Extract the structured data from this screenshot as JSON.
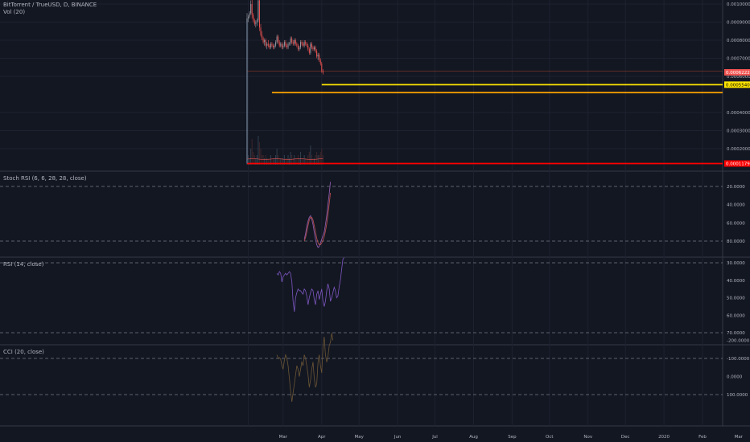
{
  "colors": {
    "background": "#131722",
    "grid": "#1e2230",
    "up": "#9598a1",
    "down": "#ef5350",
    "stoch_k": "#6d4c8f",
    "stoch_d": "#b04e4e",
    "rsi_line": "#7e57c2",
    "cci_line": "#5c4a30",
    "band_purple": "#2a1a4a",
    "band_cci": "#1e1f18",
    "hline_red": "#ff0000",
    "hline_yellow": "#ffe600",
    "hline_orange": "#ffa500",
    "hline_brown": "#8b3a2a"
  },
  "main": {
    "title": "BitTorrent / TrueUSD, D, BINANCE",
    "vol_label": "Vol (20)",
    "price_ticks": [
      "0.0010000",
      "0.0009000",
      "0.0008000",
      "0.0007000",
      "0.0006000",
      "0.0004000",
      "0.0003000",
      "0.0002000"
    ],
    "price_tick_values": [
      0.001,
      0.0009,
      0.0008,
      0.0007,
      0.0006,
      0.0004,
      0.0003,
      0.0002
    ],
    "last_price": "0.0006222",
    "last_price_value": 0.0006222,
    "hlines": [
      {
        "label": "0.0005540",
        "value": 0.000554,
        "color": "#ffe600",
        "start_date": "2019-04-01"
      },
      {
        "label": "",
        "value": 0.00051,
        "color": "#ffa500",
        "start_date": "2019-02-20"
      },
      {
        "label": "0.0001179",
        "value": 0.0001179,
        "color": "#ff0000",
        "start_date": "2019-01-31"
      },
      {
        "label": "",
        "value": 0.000628,
        "color": "#8b3a2a",
        "start_date": "2019-01-31"
      }
    ]
  },
  "x_axis": {
    "labels": [
      "Mar",
      "Apr",
      "May",
      "Jun",
      "Jul",
      "Aug",
      "Sep",
      "Oct",
      "Nov",
      "Dec",
      "2020",
      "Feb",
      "Mar"
    ]
  },
  "stoch": {
    "title": "Stoch RSI (6, 6, 28, 28, close)",
    "ticks": [
      "80.0000",
      "60.0000",
      "40.0000",
      "20.0000"
    ],
    "tick_values": [
      80,
      60,
      40,
      20
    ],
    "band": [
      20,
      80
    ]
  },
  "rsi": {
    "title": "RSI (14, close)",
    "ticks": [
      "70.0000",
      "60.0000",
      "50.0000",
      "40.0000",
      "30.0000"
    ],
    "tick_values": [
      70,
      60,
      50,
      40,
      30
    ],
    "band": [
      30,
      70
    ]
  },
  "cci": {
    "title": "CCI (20, close)",
    "ticks": [
      "100.0000",
      "0.0000",
      "-100.0000",
      "-200.0000"
    ],
    "tick_values": [
      100,
      0,
      -100,
      -200
    ],
    "band": [
      -100,
      100
    ]
  },
  "chart_data": [
    {
      "type": "candlestick",
      "title": "BitTorrent / TrueUSD, D, BINANCE",
      "x_start": "2019-01-31",
      "x_end": "2019-04-26",
      "ylim": [
        0.00011,
        0.00106
      ],
      "ohlc": [
        [
          0.0009,
          0.00095,
          0.00012,
          0.00092
        ],
        [
          0.00092,
          0.00094,
          0.0009,
          0.00093
        ],
        [
          0.00093,
          0.00096,
          0.00092,
          0.00095
        ],
        [
          0.00095,
          0.00102,
          0.00094,
          0.001
        ],
        [
          0.001,
          0.00103,
          0.00092,
          0.00094
        ],
        [
          0.00094,
          0.00095,
          0.0009,
          0.00091
        ],
        [
          0.00091,
          0.00092,
          0.00088,
          0.00089
        ],
        [
          0.00089,
          0.00091,
          0.00087,
          0.0009
        ],
        [
          0.0009,
          0.00092,
          0.00088,
          0.00091
        ],
        [
          0.00091,
          0.00104,
          0.0009,
          0.00102
        ],
        [
          0.00102,
          0.00104,
          0.00085,
          0.00087
        ],
        [
          0.00087,
          0.00089,
          0.00082,
          0.00083
        ],
        [
          0.00083,
          0.00085,
          0.0008,
          0.00081
        ],
        [
          0.00081,
          0.00082,
          0.00078,
          0.00079
        ],
        [
          0.00079,
          0.00081,
          0.00077,
          0.0008
        ],
        [
          0.0008,
          0.00081,
          0.00076,
          0.00077
        ],
        [
          0.00077,
          0.00079,
          0.00075,
          0.00078
        ],
        [
          0.00078,
          0.0008,
          0.00076,
          0.00077
        ],
        [
          0.00077,
          0.00078,
          0.00075,
          0.00076
        ],
        [
          0.00076,
          0.00079,
          0.00075,
          0.00078
        ],
        [
          0.00078,
          0.00079,
          0.00076,
          0.00077
        ],
        [
          0.00077,
          0.00078,
          0.00075,
          0.00076
        ],
        [
          0.00076,
          0.00078,
          0.00075,
          0.00077
        ],
        [
          0.00077,
          0.0008,
          0.00076,
          0.00079
        ],
        [
          0.00079,
          0.00083,
          0.00078,
          0.00082
        ],
        [
          0.00082,
          0.00083,
          0.00078,
          0.00079
        ],
        [
          0.00079,
          0.0008,
          0.00076,
          0.00077
        ],
        [
          0.00077,
          0.00079,
          0.00076,
          0.00078
        ],
        [
          0.00078,
          0.00079,
          0.00075,
          0.00076
        ],
        [
          0.00076,
          0.00078,
          0.00075,
          0.00077
        ],
        [
          0.00077,
          0.0008,
          0.00076,
          0.00079
        ],
        [
          0.00079,
          0.0008,
          0.00076,
          0.00077
        ],
        [
          0.00077,
          0.00078,
          0.00075,
          0.00076
        ],
        [
          0.00076,
          0.00079,
          0.00075,
          0.00078
        ],
        [
          0.00078,
          0.00079,
          0.00077,
          0.00078
        ],
        [
          0.00078,
          0.00082,
          0.00077,
          0.00081
        ],
        [
          0.00081,
          0.00082,
          0.00078,
          0.00079
        ],
        [
          0.00079,
          0.0008,
          0.00077,
          0.00078
        ],
        [
          0.00078,
          0.00081,
          0.00077,
          0.0008
        ],
        [
          0.0008,
          0.00081,
          0.00077,
          0.00078
        ],
        [
          0.00078,
          0.00079,
          0.00076,
          0.00077
        ],
        [
          0.00077,
          0.00078,
          0.00074,
          0.00075
        ],
        [
          0.00075,
          0.00077,
          0.00074,
          0.00076
        ],
        [
          0.00076,
          0.0008,
          0.00075,
          0.00079
        ],
        [
          0.00079,
          0.0008,
          0.00077,
          0.00078
        ],
        [
          0.00078,
          0.00079,
          0.00076,
          0.00077
        ],
        [
          0.00077,
          0.0008,
          0.00076,
          0.00079
        ],
        [
          0.00079,
          0.0008,
          0.00077,
          0.00078
        ],
        [
          0.00078,
          0.00079,
          0.00076,
          0.00077
        ],
        [
          0.00077,
          0.00078,
          0.00074,
          0.00075
        ],
        [
          0.00075,
          0.00076,
          0.00072,
          0.00073
        ],
        [
          0.00073,
          0.00079,
          0.00072,
          0.00078
        ],
        [
          0.00078,
          0.00079,
          0.00075,
          0.00076
        ],
        [
          0.00076,
          0.00077,
          0.00074,
          0.00075
        ],
        [
          0.00075,
          0.00077,
          0.00074,
          0.00076
        ],
        [
          0.00076,
          0.00077,
          0.00073,
          0.00074
        ],
        [
          0.00074,
          0.00075,
          0.0007,
          0.00071
        ],
        [
          0.00071,
          0.00073,
          0.00069,
          0.00072
        ],
        [
          0.00072,
          0.00073,
          0.00068,
          0.00069
        ],
        [
          0.00069,
          0.0007,
          0.00066,
          0.00067
        ],
        [
          0.00067,
          0.00068,
          0.00062,
          0.00063
        ],
        [
          0.00063,
          0.00064,
          0.00061,
          0.00062
        ]
      ],
      "volume": [
        0.9,
        0.3,
        0.2,
        0.5,
        0.8,
        0.4,
        0.3,
        0.2,
        0.3,
        0.9,
        0.7,
        0.5,
        0.3,
        0.3,
        0.2,
        0.3,
        0.2,
        0.2,
        0.2,
        0.3,
        0.2,
        0.2,
        0.2,
        0.3,
        0.5,
        0.3,
        0.2,
        0.2,
        0.2,
        0.2,
        0.3,
        0.2,
        0.2,
        0.3,
        0.2,
        0.4,
        0.3,
        0.2,
        0.3,
        0.2,
        0.2,
        0.3,
        0.2,
        0.4,
        0.2,
        0.2,
        0.3,
        0.2,
        0.2,
        0.3,
        0.4,
        0.6,
        0.3,
        0.2,
        0.2,
        0.3,
        0.4,
        0.3,
        0.3,
        0.4,
        0.5,
        0.3
      ]
    },
    {
      "type": "line",
      "title": "Stoch RSI (6, 6, 28, 28, close)",
      "ylim": [
        10,
        88
      ],
      "series": [
        {
          "x_start": "2019-03-18",
          "values": [
            78,
            72,
            64,
            58,
            54,
            52,
            56,
            62,
            70,
            78,
            84,
            87,
            86,
            82,
            78,
            74,
            70,
            62,
            52,
            40,
            28,
            15
          ]
        },
        {
          "x_start": "2019-03-18",
          "values": [
            80,
            76,
            70,
            63,
            57,
            54,
            54,
            57,
            63,
            70,
            77,
            82,
            84,
            84,
            82,
            79,
            75,
            69,
            61,
            51,
            39,
            27
          ]
        }
      ]
    },
    {
      "type": "line",
      "title": "RSI (14, close)",
      "ylim": [
        26,
        72
      ],
      "series": [
        {
          "x_start": "2019-02-24",
          "values": [
            36,
            37,
            35,
            36,
            41,
            38,
            37,
            36,
            37,
            36,
            35,
            36,
            41,
            52,
            58,
            50,
            47,
            45,
            46,
            46,
            47,
            48,
            45,
            46,
            49,
            54,
            50,
            47,
            45,
            46,
            51,
            54,
            48,
            46,
            51,
            48,
            45,
            52,
            55,
            52,
            46,
            42,
            45,
            52,
            50,
            47,
            44,
            46,
            50,
            49,
            44,
            40,
            34,
            28,
            27
          ]
        }
      ]
    },
    {
      "type": "line",
      "title": "CCI (20, close)",
      "ylim": [
        -260,
        150
      ],
      "series": [
        {
          "x_start": "2019-02-24",
          "values": [
            -120,
            -100,
            -105,
            -95,
            -60,
            -40,
            -90,
            -120,
            -100,
            -60,
            10,
            80,
            140,
            90,
            40,
            -10,
            -60,
            -40,
            0,
            -40,
            -80,
            -60,
            -120,
            -100,
            -60,
            -10,
            60,
            20,
            -40,
            -80,
            10,
            60,
            40,
            -80,
            -120,
            -60,
            -20,
            -160,
            -220,
            -120,
            -80,
            -110,
            -170,
            -190,
            -240,
            -200
          ]
        }
      ]
    }
  ]
}
